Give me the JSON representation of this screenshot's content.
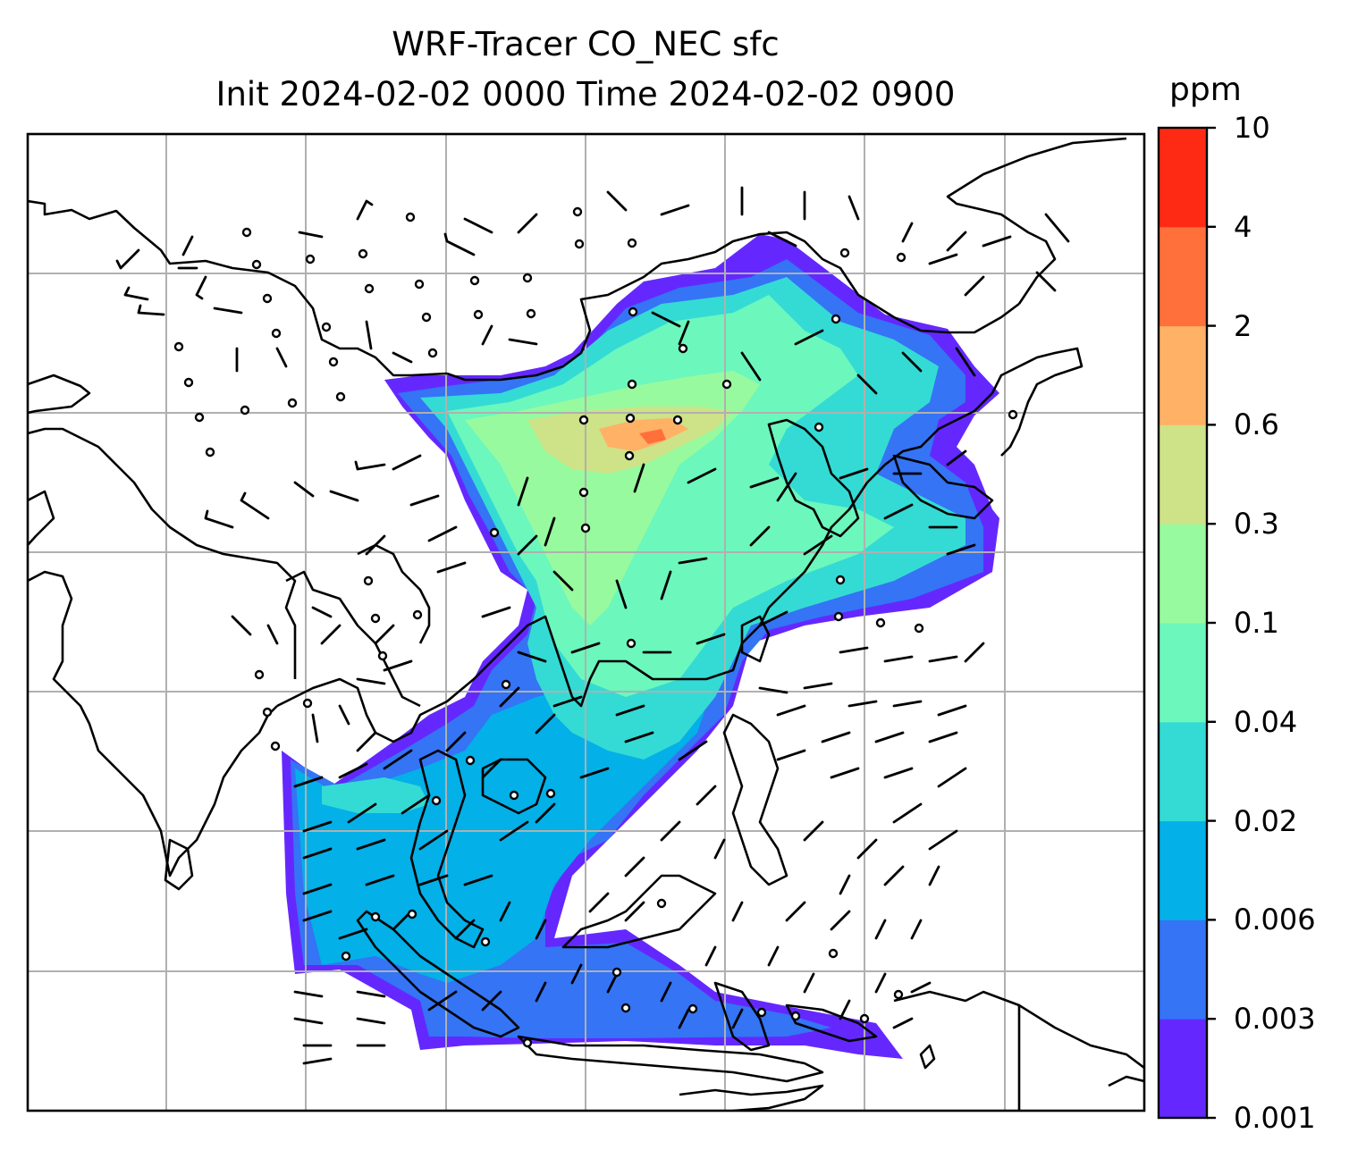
{
  "title_line1": "WRF-Tracer CO_NEC sfc",
  "title_line2": "Init 2024-02-02 0000 Time 2024-02-02 0900",
  "colorbar": {
    "unit": "ppm",
    "levels": [
      "0.001",
      "0.003",
      "0.006",
      "0.02",
      "0.04",
      "0.1",
      "0.3",
      "0.6",
      "2",
      "4",
      "10"
    ],
    "colors": [
      "#6428ff",
      "#3474f5",
      "#03b0e8",
      "#33dbd4",
      "#6cf7bd",
      "#98fa9e",
      "#cee287",
      "#ffb166",
      "#ff703a",
      "#ff2a14"
    ]
  },
  "map": {
    "coastline_color": "#000000",
    "gridline_color": "#b0b0b0",
    "wind_barbs": "black",
    "calm_marker": "circle"
  }
}
